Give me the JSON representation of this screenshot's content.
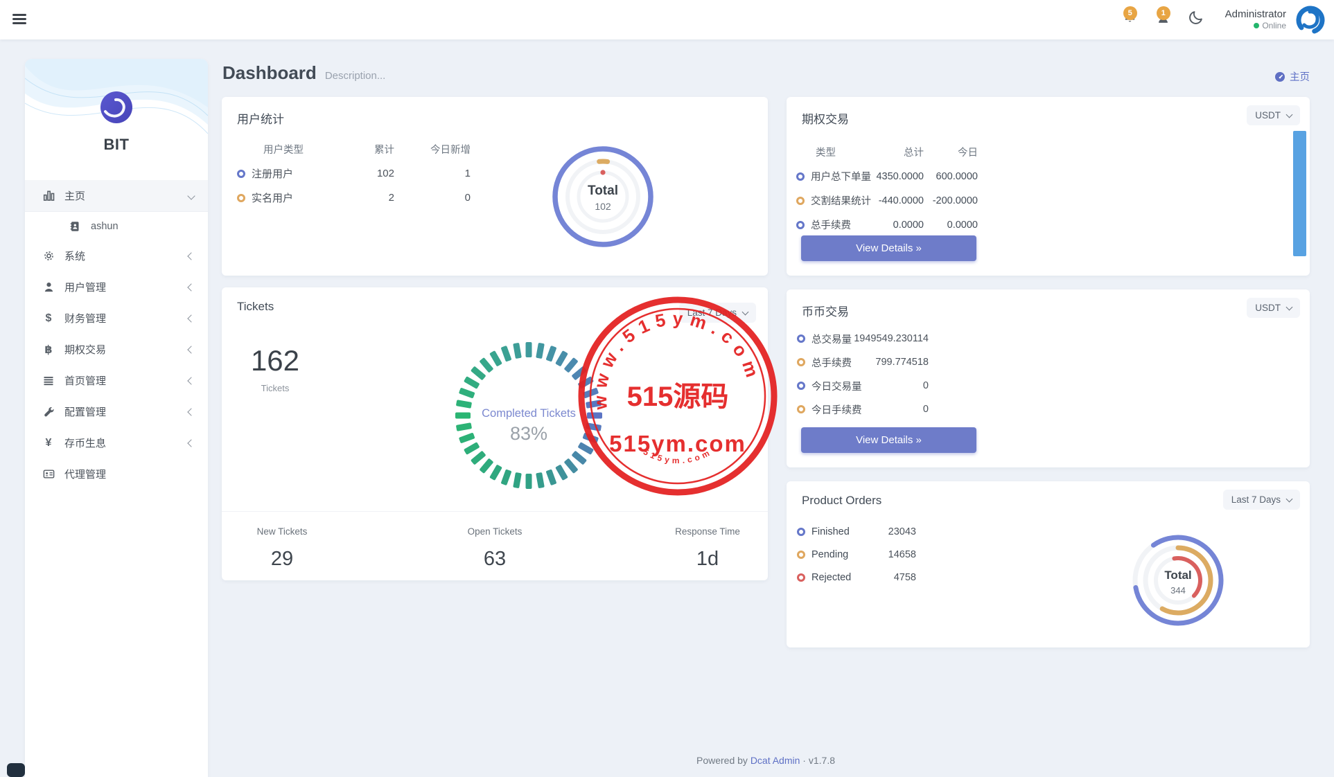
{
  "navbar": {
    "admin_name": "Administrator",
    "admin_status": "Online",
    "badges": {
      "notifications": "5",
      "messages": "1"
    }
  },
  "glyphs": {
    "dollar": "$",
    "bitcoin": "฿",
    "yen": "¥",
    "double_arrow": "»"
  },
  "sidebar": {
    "logo_text": "BIT",
    "items": [
      {
        "label": "主页",
        "icon": "chart-bar-icon",
        "active": true
      },
      {
        "label": "ashun",
        "icon": "address-book-icon",
        "submenu": true
      },
      {
        "label": "系统",
        "icon": "gear-icon"
      },
      {
        "label": "用户管理",
        "icon": "user-icon"
      },
      {
        "label": "财务管理",
        "icon": "dollar-icon"
      },
      {
        "label": "期权交易",
        "icon": "bitcoin-icon"
      },
      {
        "label": "首页管理",
        "icon": "list-icon"
      },
      {
        "label": "配置管理",
        "icon": "wrench-icon"
      },
      {
        "label": "存币生息",
        "icon": "yen-icon"
      },
      {
        "label": "代理管理",
        "icon": "id-card-icon"
      }
    ]
  },
  "header": {
    "title": "Dashboard",
    "subtitle": "Description...",
    "breadcrumb": "主页"
  },
  "user_stats": {
    "title": "用户统计",
    "columns": [
      "用户类型",
      "累计",
      "今日新增"
    ],
    "rows": [
      {
        "label": "注册用户",
        "total": "102",
        "today": "1",
        "color": "#6577c9"
      },
      {
        "label": "实名用户",
        "total": "2",
        "today": "0",
        "color": "#dfa75f"
      }
    ],
    "donut": {
      "label": "Total",
      "value": "102",
      "ring_color": "#7585d6",
      "marks": [
        {
          "color": "#dcab62"
        },
        {
          "color": "#d9605e"
        }
      ]
    }
  },
  "option_trade": {
    "title": "期权交易",
    "currency": "USDT",
    "columns": [
      "类型",
      "总计",
      "今日"
    ],
    "rows": [
      {
        "label": "用户总下单量",
        "total": "4350.0000",
        "today": "600.0000",
        "color": "#6577c9"
      },
      {
        "label": "交割结果统计",
        "total": "-440.0000",
        "today": "-200.0000",
        "color": "#dfa75f"
      },
      {
        "label": "总手续费",
        "total": "0.0000",
        "today": "0.0000",
        "color": "#6577c9"
      }
    ],
    "button": "View Details"
  },
  "coin_trade": {
    "title": "币币交易",
    "currency": "USDT",
    "rows": [
      {
        "label": "总交易量",
        "value": "1949549.230114",
        "color": "#6577c9"
      },
      {
        "label": "总手续费",
        "value": "799.774518",
        "color": "#dfa75f"
      },
      {
        "label": "今日交易量",
        "value": "0",
        "color": "#6577c9"
      },
      {
        "label": "今日手续费",
        "value": "0",
        "color": "#dfa75f"
      }
    ],
    "button": "View Details"
  },
  "tickets": {
    "title": "Tickets",
    "dropdown": "Last 7 Days",
    "count": "162",
    "count_label": "Tickets",
    "gauge": {
      "label": "Completed Tickets",
      "value": "83%",
      "segments": 36,
      "stops": [
        {
          "at": 0,
          "color": "#3f9b9c"
        },
        {
          "at": 90,
          "color": "#5b74c4"
        },
        {
          "at": 180,
          "color": "#31a185"
        },
        {
          "at": 270,
          "color": "#2bb573"
        },
        {
          "at": 360,
          "color": "#3f9b9c"
        }
      ]
    },
    "stats": [
      {
        "label": "New Tickets",
        "value": "29"
      },
      {
        "label": "Open Tickets",
        "value": "63"
      },
      {
        "label": "Response Time",
        "value": "1d"
      }
    ]
  },
  "product_orders": {
    "title": "Product Orders",
    "dropdown": "Last 7 Days",
    "rows": [
      {
        "label": "Finished",
        "value": "23043",
        "color": "#6577c9"
      },
      {
        "label": "Pending",
        "value": "14658",
        "color": "#dfa75f"
      },
      {
        "label": "Rejected",
        "value": "4758",
        "color": "#d9605e"
      }
    ],
    "donut": {
      "label": "Total",
      "value": "344",
      "rings": [
        {
          "color": "#7585d6",
          "frac": 0.82
        },
        {
          "color": "#dcab62",
          "frac": 0.58
        },
        {
          "color": "#d9605e",
          "frac": 0.4
        }
      ]
    }
  },
  "watermark": {
    "top_text": "www.515ym.com",
    "center_primary": "515源码",
    "center_secondary": "515ym.com",
    "bottom_text": "515ym.com",
    "color": "#e42020"
  },
  "footer": {
    "powered_prefix": "Powered by",
    "brand": "Dcat Admin",
    "separator": "·",
    "version": "v1.7.8"
  }
}
